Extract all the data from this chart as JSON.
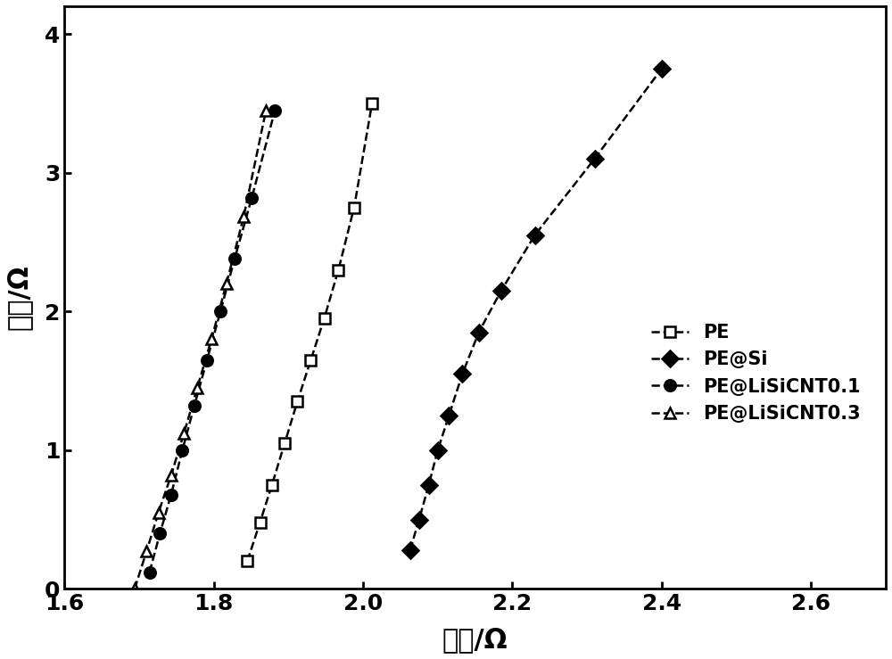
{
  "series": [
    {
      "label": "PE",
      "marker": "s",
      "marker_face": "white",
      "marker_edge": "black",
      "color": "black",
      "linestyle": "--",
      "x": [
        1.845,
        1.862,
        1.878,
        1.895,
        1.912,
        1.93,
        1.948,
        1.967,
        1.988,
        2.012
      ],
      "y": [
        0.2,
        0.48,
        0.75,
        1.05,
        1.35,
        1.65,
        1.95,
        2.3,
        2.75,
        3.5
      ]
    },
    {
      "label": "PE@Si",
      "marker": "D",
      "marker_face": "black",
      "marker_edge": "black",
      "color": "black",
      "linestyle": "--",
      "x": [
        2.063,
        2.075,
        2.088,
        2.1,
        2.115,
        2.133,
        2.155,
        2.185,
        2.23,
        2.31,
        2.4
      ],
      "y": [
        0.28,
        0.5,
        0.75,
        1.0,
        1.25,
        1.55,
        1.85,
        2.15,
        2.55,
        3.1,
        3.75
      ]
    },
    {
      "label": "PE@LiSiCNT0.1",
      "marker": "o",
      "marker_face": "black",
      "marker_edge": "black",
      "color": "black",
      "linestyle": "--",
      "x": [
        1.714,
        1.728,
        1.743,
        1.758,
        1.774,
        1.791,
        1.809,
        1.828,
        1.851,
        1.882
      ],
      "y": [
        0.12,
        0.4,
        0.68,
        1.0,
        1.32,
        1.65,
        2.0,
        2.38,
        2.82,
        3.45
      ]
    },
    {
      "label": "PE@LiSiCNT0.3",
      "marker": "^",
      "marker_face": "white",
      "marker_edge": "black",
      "color": "black",
      "linestyle": "--",
      "x": [
        1.694,
        1.71,
        1.726,
        1.743,
        1.76,
        1.778,
        1.797,
        1.817,
        1.84,
        1.87
      ],
      "y": [
        0.0,
        0.27,
        0.55,
        0.82,
        1.12,
        1.45,
        1.8,
        2.2,
        2.68,
        3.45
      ]
    }
  ],
  "xlim": [
    1.6,
    2.7
  ],
  "ylim": [
    0,
    4.2
  ],
  "xticks": [
    1.6,
    1.8,
    2.0,
    2.2,
    2.4,
    2.6
  ],
  "yticks": [
    0,
    1,
    2,
    3,
    4
  ],
  "xlabel": "实部/Ω",
  "ylabel": "虚部/Ω",
  "marker_size": 9,
  "linewidth": 1.8,
  "font_size_label": 22,
  "font_size_tick": 18,
  "font_size_legend": 15
}
